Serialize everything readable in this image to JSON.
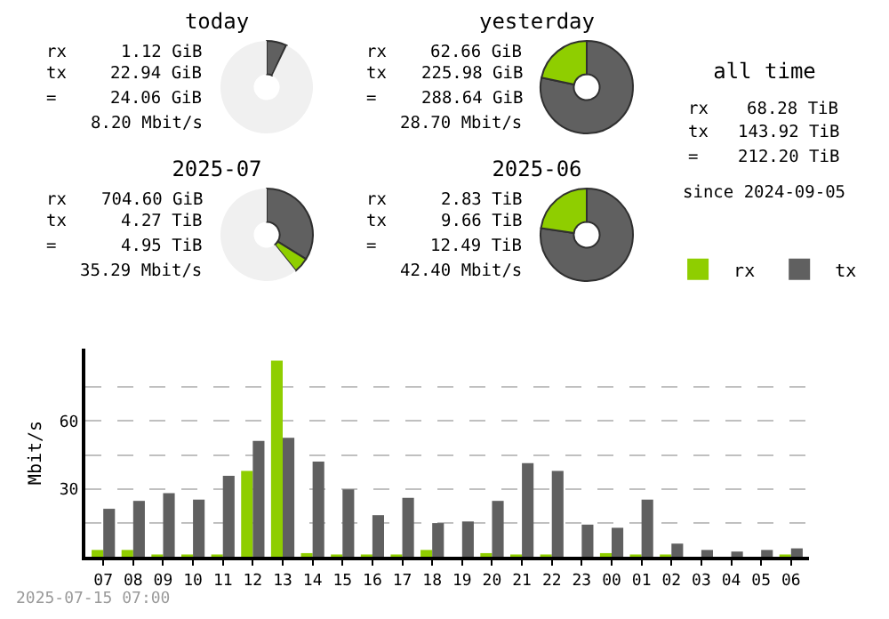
{
  "chart_data": [
    {
      "type": "donut",
      "title": "today",
      "categories": [
        null,
        null,
        null
      ],
      "values": [
        6.9,
        0.3,
        92.8
      ],
      "colors": [
        "#606060",
        "#8fce00",
        "#f0f0f0"
      ],
      "annotations": [
        "rx 1.12 GiB",
        "tx 22.94 GiB",
        "= 24.06 GiB",
        "8.20 Mbit/s"
      ]
    },
    {
      "type": "donut",
      "title": "yesterday",
      "categories": [
        null,
        null
      ],
      "values": [
        78.3,
        21.7
      ],
      "colors": [
        "#606060",
        "#8fce00"
      ],
      "annotations": [
        "rx 62.66 GiB",
        "tx 225.98 GiB",
        "= 288.64 GiB",
        "28.70 Mbit/s"
      ]
    },
    {
      "type": "donut",
      "title": "2025-07",
      "categories": [
        null,
        null,
        null
      ],
      "values": [
        33.8,
        5.4,
        60.8
      ],
      "colors": [
        "#606060",
        "#8fce00",
        "#f0f0f0"
      ],
      "annotations": [
        "rx 704.60 GiB",
        "tx 4.27 TiB",
        "= 4.95 TiB",
        "35.29 Mbit/s"
      ]
    },
    {
      "type": "donut",
      "title": "2025-06",
      "categories": [
        null,
        null
      ],
      "values": [
        77.3,
        22.7
      ],
      "colors": [
        "#606060",
        "#8fce00"
      ],
      "annotations": [
        "rx 2.83 TiB",
        "tx 9.66 TiB",
        "= 12.49 TiB",
        "42.40 Mbit/s"
      ]
    },
    {
      "type": "other",
      "title": "all time",
      "annotations": [
        "rx 68.28 TiB",
        "tx 143.92 TiB",
        "= 212.20 TiB",
        "since 2024-09-05"
      ]
    },
    {
      "type": "bar",
      "ylabel": "Mbit/s",
      "categories": [
        "07",
        "08",
        "09",
        "10",
        "11",
        "12",
        "13",
        "14",
        "15",
        "16",
        "17",
        "18",
        "19",
        "20",
        "21",
        "22",
        "23",
        "00",
        "01",
        "02",
        "03",
        "04",
        "05",
        "06"
      ],
      "series": [
        {
          "name": "rx",
          "color": "#8fce00",
          "values": [
            3.0,
            3.0,
            1,
            1,
            1,
            37.9,
            86.7,
            1.6,
            1,
            1,
            1,
            3.0,
            0,
            1.6,
            1,
            1,
            0,
            1.6,
            1,
            1,
            0,
            0,
            0,
            1
          ]
        },
        {
          "name": "tx",
          "color": "#606060",
          "values": [
            21.2,
            24.7,
            28.1,
            25.3,
            35.8,
            51.2,
            52.6,
            42.1,
            29.8,
            18.4,
            26.0,
            14.9,
            15.6,
            24.7,
            41.4,
            37.9,
            14.2,
            12.8,
            25.3,
            5.8,
            3.0,
            2.3,
            3.0,
            3.7
          ]
        }
      ],
      "ylim": [
        0,
        92
      ],
      "yticks": [
        {
          "value": 15,
          "label": null
        },
        30,
        {
          "value": 45,
          "label": null
        },
        60,
        {
          "value": 75,
          "label": null
        }
      ],
      "grid": "y",
      "legend": "top right",
      "annotations": [
        "2025-07-15 07:00"
      ]
    }
  ]
}
